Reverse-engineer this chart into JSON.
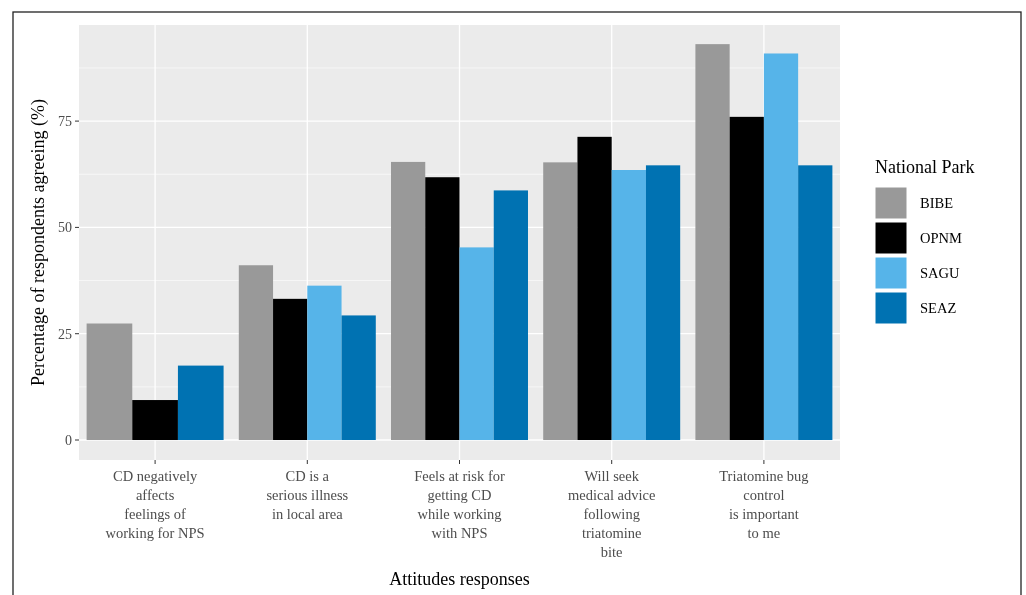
{
  "chart_data": {
    "type": "bar",
    "xlabel": "Attitudes responses",
    "ylabel": "Percentage of respondents agreeing (%)",
    "legend_title": "National Park",
    "legend": "right",
    "categories": [
      "CD negatively\naffects\nfeelings of\nworking for NPS",
      "CD is a\nserious illness\nin local area",
      "Feels at risk for\ngetting CD\nwhile working\nwith NPS",
      "Will seek\nmedical advice\nfollowing\ntriatomine\nbite",
      "Triatomine bug\ncontrol\nis important\nto me"
    ],
    "series": [
      {
        "name": "BIBE",
        "color": "#999999",
        "values": [
          27.4,
          41.1,
          65.4,
          65.3,
          93.1
        ]
      },
      {
        "name": "OPNM",
        "color": "#000000",
        "values": [
          9.4,
          33.2,
          61.8,
          71.3,
          76.0
        ]
      },
      {
        "name": "SAGU",
        "color": "#56b4e9",
        "values": [
          null,
          36.3,
          45.3,
          63.5,
          90.9
        ]
      },
      {
        "name": "SEAZ",
        "color": "#0072b2",
        "values": [
          17.5,
          29.3,
          58.7,
          64.6,
          64.6
        ]
      }
    ],
    "ylim": [
      -4.7,
      97.6
    ],
    "yticks": [
      0,
      25,
      50,
      75
    ],
    "grid": true
  }
}
